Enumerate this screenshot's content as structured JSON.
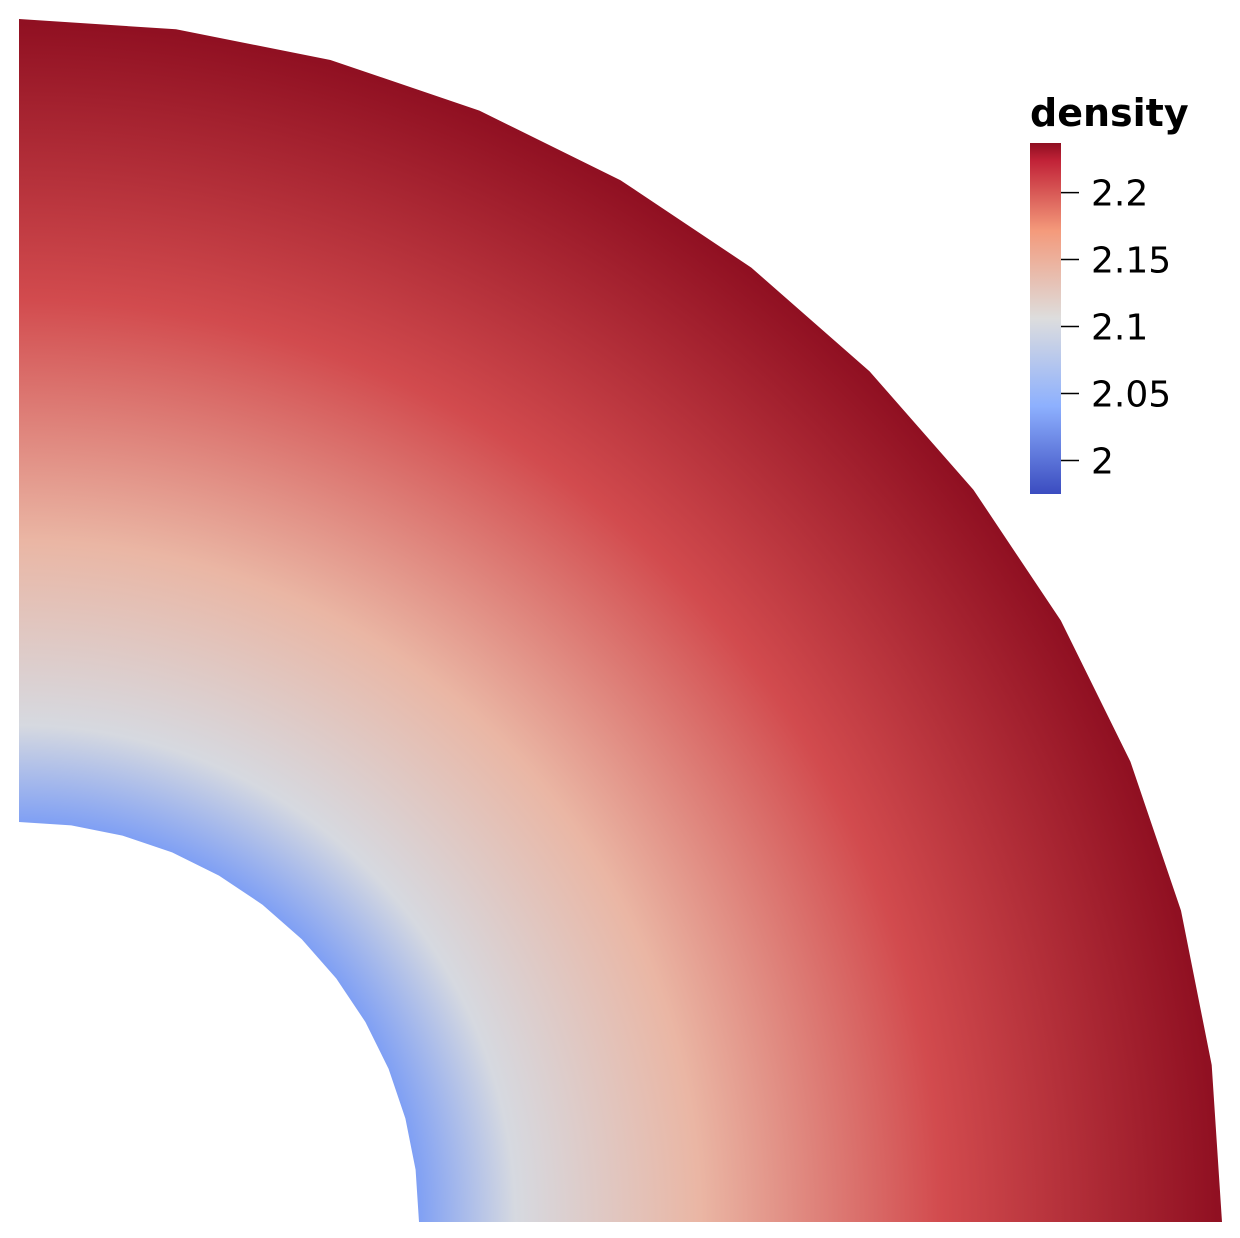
{
  "colormap": {
    "stops": [
      {
        "t": 0.0,
        "color": "#3b4cc0"
      },
      {
        "t": 0.25,
        "color": "#8db0fe"
      },
      {
        "t": 0.5,
        "color": "#dddddd"
      },
      {
        "t": 0.75,
        "color": "#f49a7b"
      },
      {
        "t": 1.0,
        "color": "#b40426"
      }
    ],
    "max_color": "#8f0f21"
  },
  "legend": {
    "title": "density",
    "range": [
      1.975,
      2.237
    ],
    "ticks": [
      {
        "value": 2.2,
        "label": "2.2"
      },
      {
        "value": 2.15,
        "label": "2.15"
      },
      {
        "value": 2.1,
        "label": "2.1"
      },
      {
        "value": 2.05,
        "label": "2.05"
      },
      {
        "value": 2.0,
        "label": "2"
      }
    ]
  },
  "field": {
    "inner_value": 2.03,
    "mid_value": 2.1,
    "outer_value": 2.237,
    "shape": "quarter-annulus"
  }
}
